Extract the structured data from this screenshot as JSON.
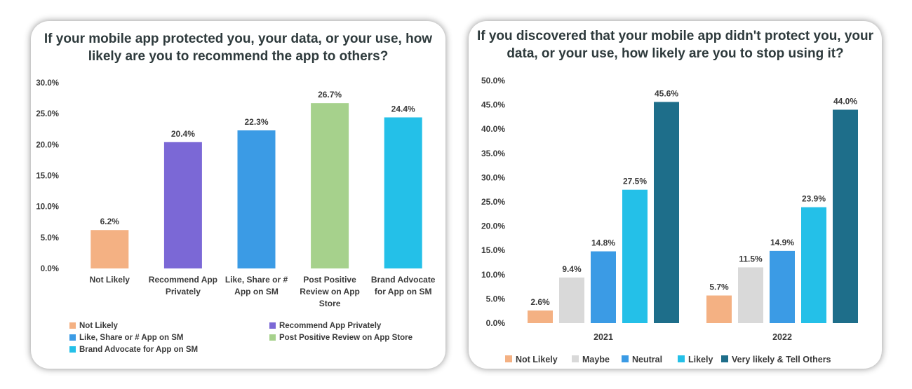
{
  "charts": [
    {
      "title": "If your mobile app protected you, your data, or your use, how likely are you to recommend the app to others?",
      "chart_data": {
        "type": "bar",
        "title": "If your mobile app protected you, your data, or your use, how likely are you to recommend the app to others?",
        "categories": [
          [
            "Not Likely"
          ],
          [
            "Recommend App",
            "Privately"
          ],
          [
            "Like, Share or #",
            "App on SM"
          ],
          [
            "Post Positive",
            "Review on App",
            "Store"
          ],
          [
            "Brand Advocate",
            "for App on SM"
          ]
        ],
        "values": [
          6.2,
          20.4,
          22.3,
          26.7,
          24.4
        ],
        "value_labels": [
          "6.2%",
          "20.4%",
          "22.3%",
          "26.7%",
          "24.4%"
        ],
        "colors": [
          "#F4B183",
          "#7B68D6",
          "#3B9BE5",
          "#A6D18C",
          "#24C0E8"
        ],
        "ylim": [
          0,
          30
        ],
        "yticks": [
          "0.0%",
          "5.0%",
          "10.0%",
          "15.0%",
          "20.0%",
          "25.0%",
          "30.0%"
        ],
        "xlabel": "",
        "ylabel": "",
        "grid": false,
        "legend": {
          "position": "bottom",
          "items": [
            {
              "label": "Not Likely",
              "color": "#F4B183"
            },
            {
              "label": "Recommend App Privately",
              "color": "#7B68D6"
            },
            {
              "label": "Like, Share or # App on SM",
              "color": "#3B9BE5"
            },
            {
              "label": "Post Positive Review on App Store",
              "color": "#A6D18C"
            },
            {
              "label": "Brand Advocate for App on SM",
              "color": "#24C0E8"
            }
          ]
        }
      }
    },
    {
      "title": "If you discovered that your mobile app didn't protect you, your data, or your use, how likely are you to stop using it?",
      "chart_data": {
        "type": "bar",
        "title": "If you discovered that your mobile app didn't protect you, your data, or your use, how likely are you to stop using it?",
        "categories": [
          "2021",
          "2022"
        ],
        "series": [
          {
            "name": "Not Likely",
            "color": "#F4B183",
            "values": [
              2.6,
              5.7
            ],
            "labels": [
              "2.6%",
              "5.7%"
            ]
          },
          {
            "name": "Maybe",
            "color": "#D9D9D9",
            "values": [
              9.4,
              11.5
            ],
            "labels": [
              "9.4%",
              "11.5%"
            ]
          },
          {
            "name": "Neutral",
            "color": "#3B9BE5",
            "values": [
              14.8,
              14.9
            ],
            "labels": [
              "14.8%",
              "14.9%"
            ]
          },
          {
            "name": "Likely",
            "color": "#24C0E8",
            "values": [
              27.5,
              23.9
            ],
            "labels": [
              "27.5%",
              "23.9%"
            ]
          },
          {
            "name": "Very likely & Tell Others",
            "color": "#1E6E8A",
            "values": [
              45.6,
              44.0
            ],
            "labels": [
              "45.6%",
              "44.0%"
            ]
          }
        ],
        "ylim": [
          0,
          50
        ],
        "yticks": [
          "0.0%",
          "5.0%",
          "10.0%",
          "15.0%",
          "20.0%",
          "25.0%",
          "30.0%",
          "35.0%",
          "40.0%",
          "45.0%",
          "50.0%"
        ],
        "xlabel": "",
        "ylabel": "",
        "grid": false,
        "legend": {
          "position": "bottom"
        }
      }
    }
  ]
}
